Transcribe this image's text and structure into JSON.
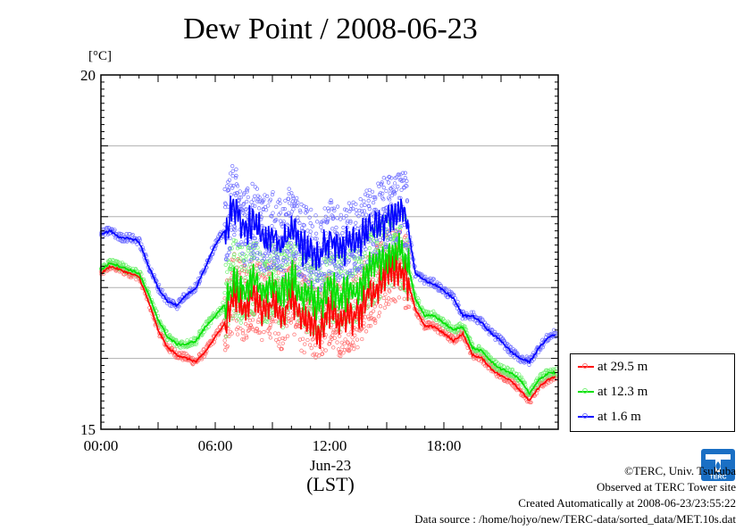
{
  "title": "Dew Point / 2008-06-23",
  "y_unit": "[°C]",
  "x_date_label": "Jun-23",
  "x_timezone": "(LST)",
  "footer": {
    "copyright": "©TERC, Univ. Tsukuba",
    "observed": "Observed at TERC Tower site",
    "created": "Created Automatically at 2008-06-23/23:55:22",
    "source": "Data source : /home/hojyo/new/TERC-data/sorted_data/MET.10s.dat"
  },
  "logo": {
    "text": "TERC",
    "icon": "terc-logo-icon",
    "color": "#1a6fc4"
  },
  "chart_data": {
    "type": "line",
    "title": "Dew Point / 2008-06-23",
    "ylabel": "[°C]",
    "xlabel": "(LST)",
    "x_unit": "hours",
    "xlim": [
      0,
      24
    ],
    "ylim": [
      15,
      20
    ],
    "y_ticks": [
      15,
      20
    ],
    "y_tick_labels": [
      "15",
      "20"
    ],
    "y_gridlines": [
      16,
      17,
      18,
      19
    ],
    "x_ticks": [
      0,
      6,
      12,
      18
    ],
    "x_tick_labels": [
      "00:00",
      "06:00",
      "12:00",
      "18:00"
    ],
    "grid": true,
    "legend_position": "right",
    "series": [
      {
        "name": "at 29.5 m",
        "color": "#ff0000",
        "dot_color": "#ff7070",
        "x": [
          0,
          0.5,
          1,
          1.5,
          2,
          2.5,
          3,
          3.5,
          4,
          4.5,
          5,
          5.5,
          6,
          6.5,
          7,
          7.5,
          8,
          8.5,
          9,
          9.5,
          10,
          10.5,
          11,
          11.5,
          12,
          12.5,
          13,
          13.5,
          14,
          14.5,
          15,
          15.5,
          16,
          16.5,
          17,
          17.5,
          18,
          18.5,
          19,
          19.5,
          20,
          20.5,
          21,
          21.5,
          22,
          22.5,
          23,
          23.5,
          23.9
        ],
        "values": [
          17.2,
          17.3,
          17.25,
          17.2,
          17.15,
          16.8,
          16.4,
          16.15,
          16.05,
          16.0,
          15.95,
          16.1,
          16.3,
          16.5,
          16.9,
          16.7,
          16.9,
          16.7,
          16.8,
          16.6,
          16.9,
          16.6,
          16.5,
          16.4,
          16.7,
          16.5,
          16.6,
          16.6,
          16.9,
          17.0,
          17.2,
          17.3,
          17.2,
          16.7,
          16.45,
          16.45,
          16.35,
          16.25,
          16.35,
          16.05,
          16.0,
          15.85,
          15.75,
          15.7,
          15.55,
          15.4,
          15.6,
          15.7,
          15.75
        ]
      },
      {
        "name": "at 12.3 m",
        "color": "#00e000",
        "dot_color": "#70f070",
        "x": [
          0,
          0.5,
          1,
          1.5,
          2,
          2.5,
          3,
          3.5,
          4,
          4.5,
          5,
          5.5,
          6,
          6.5,
          7,
          7.5,
          8,
          8.5,
          9,
          9.5,
          10,
          10.5,
          11,
          11.5,
          12,
          12.5,
          13,
          13.5,
          14,
          14.5,
          15,
          15.5,
          16,
          16.5,
          17,
          17.5,
          18,
          18.5,
          19,
          19.5,
          20,
          20.5,
          21,
          21.5,
          22,
          22.5,
          23,
          23.5,
          23.9
        ],
        "values": [
          17.25,
          17.35,
          17.3,
          17.25,
          17.2,
          16.9,
          16.55,
          16.3,
          16.2,
          16.2,
          16.25,
          16.45,
          16.6,
          16.75,
          17.1,
          16.95,
          17.1,
          16.95,
          17.05,
          16.9,
          17.15,
          16.9,
          16.85,
          16.75,
          17.0,
          16.85,
          16.95,
          17.0,
          17.2,
          17.3,
          17.45,
          17.5,
          17.45,
          16.85,
          16.6,
          16.6,
          16.5,
          16.4,
          16.45,
          16.15,
          16.1,
          15.95,
          15.85,
          15.8,
          15.7,
          15.5,
          15.7,
          15.8,
          15.8
        ]
      },
      {
        "name": "at 1.6 m",
        "color": "#0000ff",
        "dot_color": "#7070ff",
        "x": [
          0,
          0.5,
          1,
          1.5,
          2,
          2.5,
          3,
          3.5,
          4,
          4.5,
          5,
          5.5,
          6,
          6.5,
          7,
          7.5,
          8,
          8.5,
          9,
          9.5,
          10,
          10.5,
          11,
          11.5,
          12,
          12.5,
          13,
          13.5,
          14,
          14.5,
          15,
          15.5,
          16,
          16.5,
          17,
          17.5,
          18,
          18.5,
          19,
          19.5,
          20,
          20.5,
          21,
          21.5,
          22,
          22.5,
          23,
          23.5,
          23.9
        ],
        "values": [
          17.75,
          17.8,
          17.7,
          17.7,
          17.65,
          17.3,
          17.0,
          16.8,
          16.75,
          16.9,
          17.0,
          17.3,
          17.6,
          17.8,
          18.2,
          17.8,
          17.9,
          17.7,
          17.75,
          17.6,
          17.85,
          17.6,
          17.5,
          17.45,
          17.7,
          17.55,
          17.6,
          17.65,
          17.8,
          17.85,
          18.0,
          18.1,
          18.05,
          17.2,
          17.1,
          17.05,
          16.95,
          16.85,
          16.6,
          16.6,
          16.5,
          16.35,
          16.25,
          16.1,
          16.0,
          15.95,
          16.15,
          16.3,
          16.35
        ]
      }
    ]
  }
}
